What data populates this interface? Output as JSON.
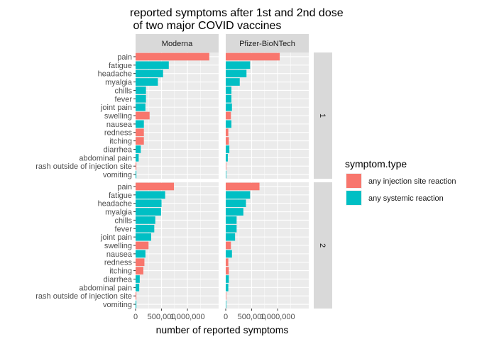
{
  "chart_data": {
    "type": "bar",
    "orientation": "horizontal",
    "facet": true,
    "title_lines": [
      "reported symptoms after 1st and 2nd dose",
      " of two major COVID vaccines"
    ],
    "xlabel": "number of reported symptoms",
    "ylabel": "",
    "xlim": [
      0,
      1600000
    ],
    "x_ticks": [
      0,
      500000,
      1000000
    ],
    "x_tick_labels": [
      "0",
      "500,000",
      "1,000,000"
    ],
    "grid": true,
    "legend_position": "right",
    "legend": {
      "title": "symptom.type",
      "items": [
        {
          "label": "any injection site reaction",
          "color": "#F8766D"
        },
        {
          "label": "any systemic reaction",
          "color": "#00BFC4"
        }
      ]
    },
    "columns": [
      "Moderna",
      "Pfizer-BioNTech"
    ],
    "rows": [
      "1",
      "2"
    ],
    "categories": [
      "pain",
      "fatigue",
      "headache",
      "myalgia",
      "chills",
      "fever",
      "joint pain",
      "swelling",
      "nausea",
      "redness",
      "itching",
      "diarrhea",
      "abdominal pain",
      "rash outside of injection site",
      "vomiting"
    ],
    "category_type": [
      "injection",
      "systemic",
      "systemic",
      "systemic",
      "systemic",
      "systemic",
      "systemic",
      "injection",
      "systemic",
      "injection",
      "injection",
      "systemic",
      "systemic",
      "injection",
      "systemic"
    ],
    "panels": [
      {
        "column": "Moderna",
        "row": "1",
        "values": [
          1420000,
          640000,
          530000,
          430000,
          200000,
          200000,
          190000,
          270000,
          160000,
          160000,
          160000,
          100000,
          60000,
          15000,
          15000
        ]
      },
      {
        "column": "Pfizer-BioNTech",
        "row": "1",
        "values": [
          1040000,
          470000,
          400000,
          270000,
          110000,
          110000,
          120000,
          100000,
          110000,
          50000,
          60000,
          70000,
          40000,
          10000,
          10000
        ]
      },
      {
        "column": "Moderna",
        "row": "2",
        "values": [
          740000,
          570000,
          500000,
          490000,
          380000,
          360000,
          300000,
          250000,
          190000,
          170000,
          150000,
          80000,
          70000,
          15000,
          15000
        ]
      },
      {
        "column": "Pfizer-BioNTech",
        "row": "2",
        "values": [
          650000,
          470000,
          390000,
          340000,
          210000,
          210000,
          180000,
          100000,
          120000,
          50000,
          60000,
          60000,
          50000,
          10000,
          10000
        ]
      }
    ],
    "colors": {
      "injection": "#F8766D",
      "systemic": "#00BFC4",
      "panel_bg": "#EBEBEB",
      "strip_bg": "#D9D9D9",
      "grid_major": "#FFFFFF",
      "text": "#4D4D4D"
    }
  }
}
